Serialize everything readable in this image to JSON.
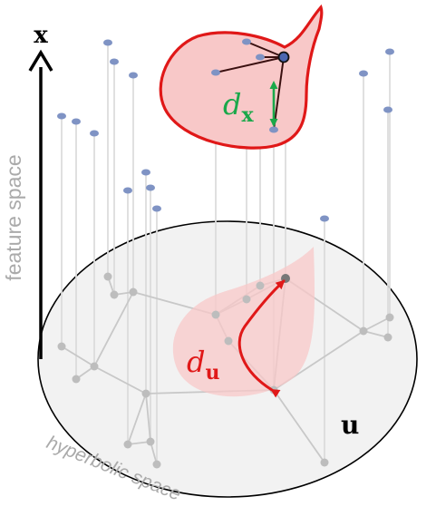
{
  "labels": {
    "x_axis": "x",
    "feature_axis": "feature space",
    "u_label": "u",
    "hyperbolic_label": "hyperbolic space",
    "d_x": {
      "base": "d",
      "sub": "x"
    },
    "d_u": {
      "base": "d",
      "sub": "u"
    }
  },
  "colors": {
    "node_feature": "#7f93c4",
    "node_disk": "#bdbdbd",
    "edge_disk": "#c8c8c8",
    "projection_line": "#dcdcdc",
    "blob_fill": "#f8c8c8",
    "blob_stroke": "#e01818",
    "path_red": "#e01818",
    "green": "#1aa84a",
    "disk_fill": "#f2f2f2",
    "label_gray": "#aaaaaa"
  },
  "icons": {
    "axis_arrow": "arrow-up-icon",
    "distance_arrow": "double-arrow-icon"
  }
}
